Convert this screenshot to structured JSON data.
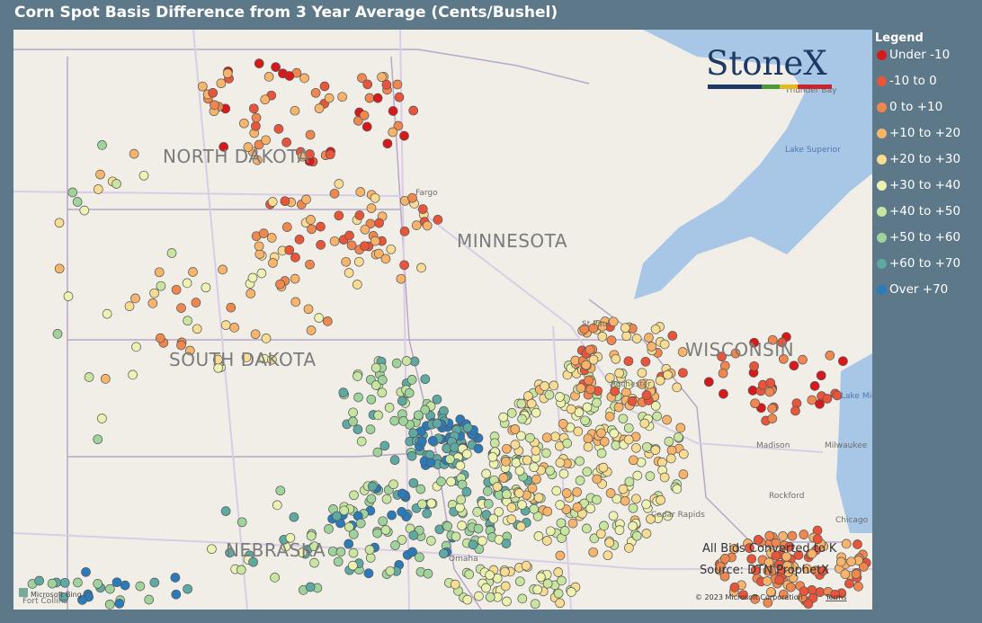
{
  "header": {
    "title": "Corn Spot Basis Difference from 3 Year Average (Cents/Bushel)"
  },
  "legend": {
    "title": "Legend",
    "items": [
      {
        "label": "Under -10",
        "color": "#d7191c"
      },
      {
        "label": "-10 to 0",
        "color": "#e8553a"
      },
      {
        "label": "0 to +10",
        "color": "#f0874f"
      },
      {
        "label": "+10 to +20",
        "color": "#f7b46a"
      },
      {
        "label": "+20 to +30",
        "color": "#f7dc92"
      },
      {
        "label": "+30 to +40",
        "color": "#eef2b0"
      },
      {
        "label": "+40 to +50",
        "color": "#c8e6a0"
      },
      {
        "label": "+50 to +60",
        "color": "#9fd39b"
      },
      {
        "label": "+60 to +70",
        "color": "#5fa9a3"
      },
      {
        "label": "Over +70",
        "color": "#2b7bba"
      }
    ]
  },
  "map": {
    "states": [
      "NORTH DAKOTA",
      "SOUTH DAKOTA",
      "MINNESOTA",
      "WISCONSIN",
      "NEBRASKA"
    ],
    "places": [
      "Fargo",
      "St Paul",
      "Rochester",
      "Thunder Bay",
      "Lake Superior",
      "Lake Michigan",
      "Madison",
      "Milwaukee",
      "Rockford",
      "Chicago",
      "Cedar Rapids",
      "Omaha",
      "Fort Collins"
    ],
    "logo": "StoneX",
    "notes": [
      "All Bids Converted to K",
      "Source: DTN ProphetX"
    ],
    "attribution": {
      "provider": "Microsoft Bing",
      "copyright": "© 2023 Microsoft Corporation",
      "terms": "Terms"
    }
  }
}
